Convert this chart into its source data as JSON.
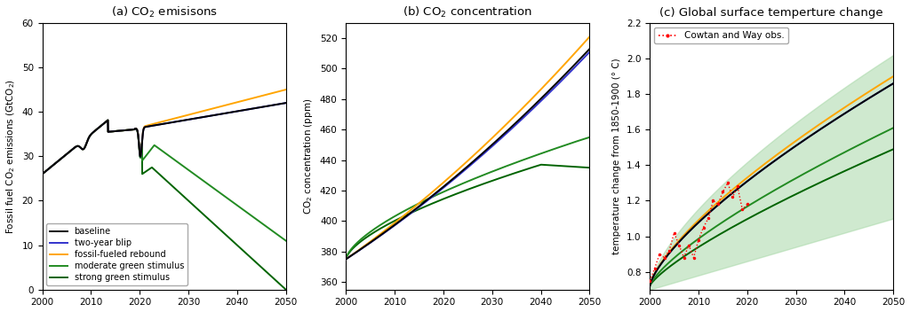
{
  "title_a": "(a) CO$_2$ emisisons",
  "title_b": "(b) CO$_2$ concentration",
  "title_c": "(c) Global surface temperture change",
  "ylabel_a": "Fossil fuel CO$_2$ emissions (GtCO$_2$)",
  "ylabel_b": "CO$_2$ concentration (ppm)",
  "ylabel_c": "temperature change from 1850-1900 (° C)",
  "colors": {
    "baseline": "#000000",
    "two_year_blip": "#3333cc",
    "fossil_rebound": "#ffa500",
    "moderate_green": "#228B22",
    "strong_green": "#006400"
  },
  "legend_labels": [
    "baseline",
    "two-year blip",
    "fossil-fueled rebound",
    "moderate green stimulus",
    "strong green stimulus"
  ],
  "cowtan_label": "Cowtan and Way obs.",
  "panel_a": {
    "xlim": [
      2000,
      2050
    ],
    "ylim": [
      0,
      60
    ],
    "xticks": [
      2000,
      2010,
      2020,
      2030,
      2040,
      2050
    ],
    "yticks": [
      0,
      10,
      20,
      30,
      40,
      50,
      60
    ]
  },
  "panel_b": {
    "xlim": [
      2000,
      2050
    ],
    "ylim": [
      355,
      530
    ],
    "xticks": [
      2000,
      2010,
      2020,
      2030,
      2040,
      2050
    ],
    "yticks": [
      360,
      380,
      400,
      420,
      440,
      460,
      480,
      500,
      520
    ]
  },
  "panel_c": {
    "xlim": [
      2000,
      2050
    ],
    "ylim": [
      0.7,
      2.2
    ],
    "xticks": [
      2000,
      2010,
      2020,
      2030,
      2040,
      2050
    ],
    "yticks": [
      0.8,
      1.0,
      1.2,
      1.4,
      1.6,
      1.8,
      2.0,
      2.2
    ]
  }
}
